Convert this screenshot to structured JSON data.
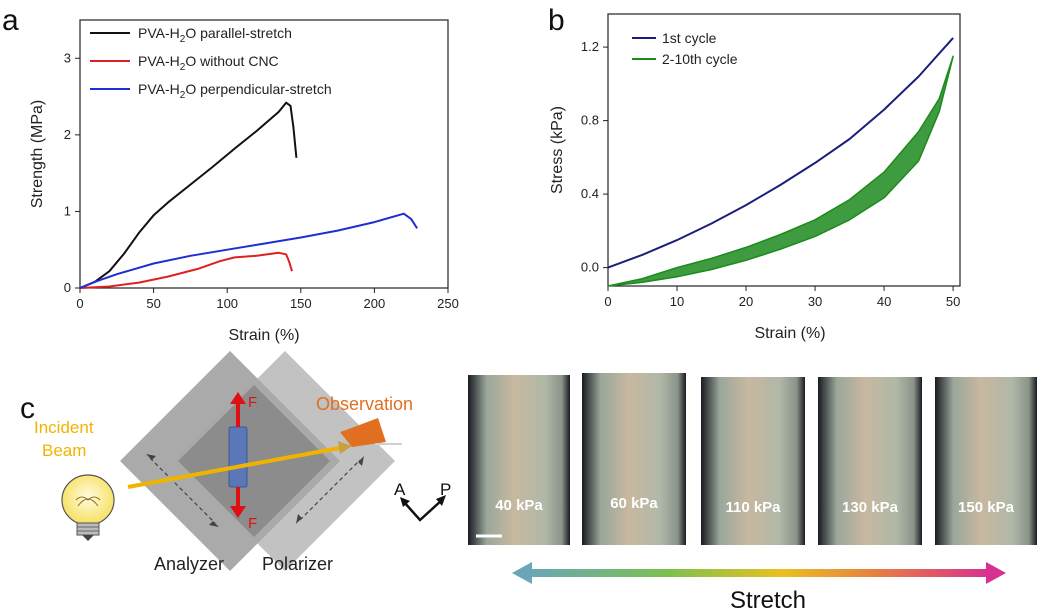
{
  "panels": {
    "a": "a",
    "b": "b",
    "c": "c"
  },
  "chart_data": [
    {
      "type": "line",
      "panel": "a",
      "xlabel": "Strain (%)",
      "ylabel": "Strength (MPa)",
      "xlim": [
        0,
        250
      ],
      "ylim": [
        0,
        3.5
      ],
      "xticks": [
        "0",
        "50",
        "100",
        "150",
        "200",
        "250"
      ],
      "yticks": [
        "0",
        "1",
        "2",
        "3"
      ],
      "legend_position": "top-left",
      "series": [
        {
          "name": "PVA-H₂O parallel-stretch",
          "name_main": "PVA-H",
          "name_sub": "2",
          "name_rest": "O parallel-stretch",
          "color": "#111111",
          "x": [
            0,
            10,
            20,
            30,
            40,
            50,
            60,
            75,
            90,
            105,
            120,
            135,
            140,
            143,
            145,
            147
          ],
          "y": [
            0,
            0.08,
            0.22,
            0.45,
            0.72,
            0.95,
            1.12,
            1.35,
            1.58,
            1.82,
            2.05,
            2.3,
            2.42,
            2.38,
            2.1,
            1.7
          ]
        },
        {
          "name": "PVA-H₂O without CNC",
          "name_main": "PVA-H",
          "name_sub": "2",
          "name_rest": "O without CNC",
          "color": "#e02020",
          "x": [
            0,
            20,
            40,
            60,
            80,
            95,
            105,
            120,
            135,
            140,
            142,
            144
          ],
          "y": [
            0,
            0.02,
            0.07,
            0.15,
            0.25,
            0.35,
            0.4,
            0.42,
            0.46,
            0.44,
            0.35,
            0.22
          ]
        },
        {
          "name": "PVA-H₂O perpendicular-stretch",
          "name_main": "PVA-H",
          "name_sub": "2",
          "name_rest": "O perpendicular-stretch",
          "color": "#1f2fd0",
          "x": [
            0,
            10,
            25,
            50,
            75,
            100,
            125,
            150,
            175,
            200,
            220,
            225,
            229
          ],
          "y": [
            0,
            0.08,
            0.18,
            0.32,
            0.42,
            0.5,
            0.58,
            0.66,
            0.75,
            0.86,
            0.97,
            0.9,
            0.78
          ]
        }
      ]
    },
    {
      "type": "line",
      "panel": "b",
      "xlabel": "Strain (%)",
      "ylabel": "Stress (kPa)",
      "xlim": [
        0,
        51
      ],
      "ylim": [
        -0.1,
        1.38
      ],
      "xticks": [
        "0",
        "10",
        "20",
        "30",
        "40",
        "50"
      ],
      "yticks": [
        "0.0",
        "0.4",
        "0.8",
        "1.2"
      ],
      "legend_position": "top-left",
      "series": [
        {
          "name": "1st cycle",
          "color": "#1a1f7a",
          "x": [
            0,
            5,
            10,
            15,
            20,
            25,
            30,
            35,
            40,
            45,
            50
          ],
          "y": [
            0,
            0.07,
            0.15,
            0.24,
            0.34,
            0.45,
            0.57,
            0.7,
            0.86,
            1.04,
            1.25
          ]
        },
        {
          "name": "2-10th cycle",
          "color": "#1d8a1d",
          "loading_x": [
            0,
            5,
            10,
            15,
            20,
            25,
            30,
            35,
            40,
            45,
            48,
            50
          ],
          "loading_y": [
            -0.1,
            -0.06,
            0.0,
            0.05,
            0.11,
            0.18,
            0.26,
            0.37,
            0.52,
            0.74,
            0.92,
            1.15
          ],
          "unloading_x": [
            50,
            48,
            45,
            40,
            35,
            30,
            25,
            20,
            15,
            10,
            5,
            0
          ],
          "unloading_y": [
            1.15,
            0.85,
            0.58,
            0.38,
            0.26,
            0.17,
            0.1,
            0.04,
            -0.01,
            -0.05,
            -0.08,
            -0.1
          ]
        }
      ]
    }
  ],
  "panel_c": {
    "incident_beam": [
      "Incident",
      "Beam"
    ],
    "observation": "Observation",
    "force": "F",
    "analyzer": "Analyzer",
    "polarizer": "Polarizer",
    "axis_a": "A",
    "axis_p": "P",
    "photos": [
      "40 kPa",
      "60 kPa",
      "110 kPa",
      "130 kPa",
      "150 kPa"
    ],
    "stretch": "Stretch",
    "colors": {
      "beam": "#f0b400",
      "observation": "#e07020",
      "force": "#e01010"
    }
  }
}
